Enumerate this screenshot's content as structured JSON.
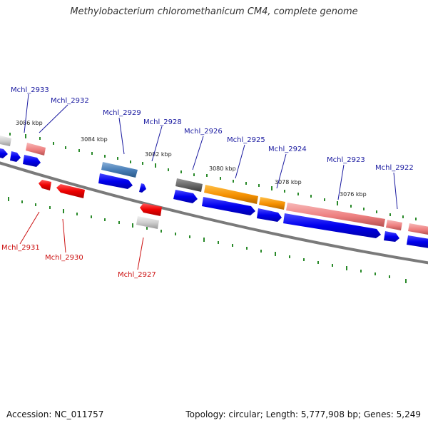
{
  "title": "Methylobacterium chloromethanicum CM4, complete genome",
  "footer": {
    "accession": "Accession: NC_011757",
    "summary": "Topology: circular; Length: 5,777,908 bp; Genes: 5,249"
  },
  "colors": {
    "backbone": "#7a7a7a",
    "tick": "#2a8a2a",
    "label_top": "#1a1aa0",
    "label_bottom": "#cc1111",
    "cds_forward": "#0a0ae6",
    "cds_reverse": "#ee1111"
  },
  "kbp_labels": [
    "3086 kbp",
    "3084 kbp",
    "3082 kbp",
    "3080 kbp",
    "3078 kbp",
    "3076 kbp"
  ],
  "gene_labels_top": [
    "Mchl_2933",
    "Mchl_2932",
    "Mchl_2929",
    "Mchl_2928",
    "Mchl_2926",
    "Mchl_2925",
    "Mchl_2924",
    "Mchl_2923",
    "Mchl_2922"
  ],
  "gene_labels_bottom": [
    "Mchl_2931",
    "Mchl_2930",
    "Mchl_2927"
  ]
}
